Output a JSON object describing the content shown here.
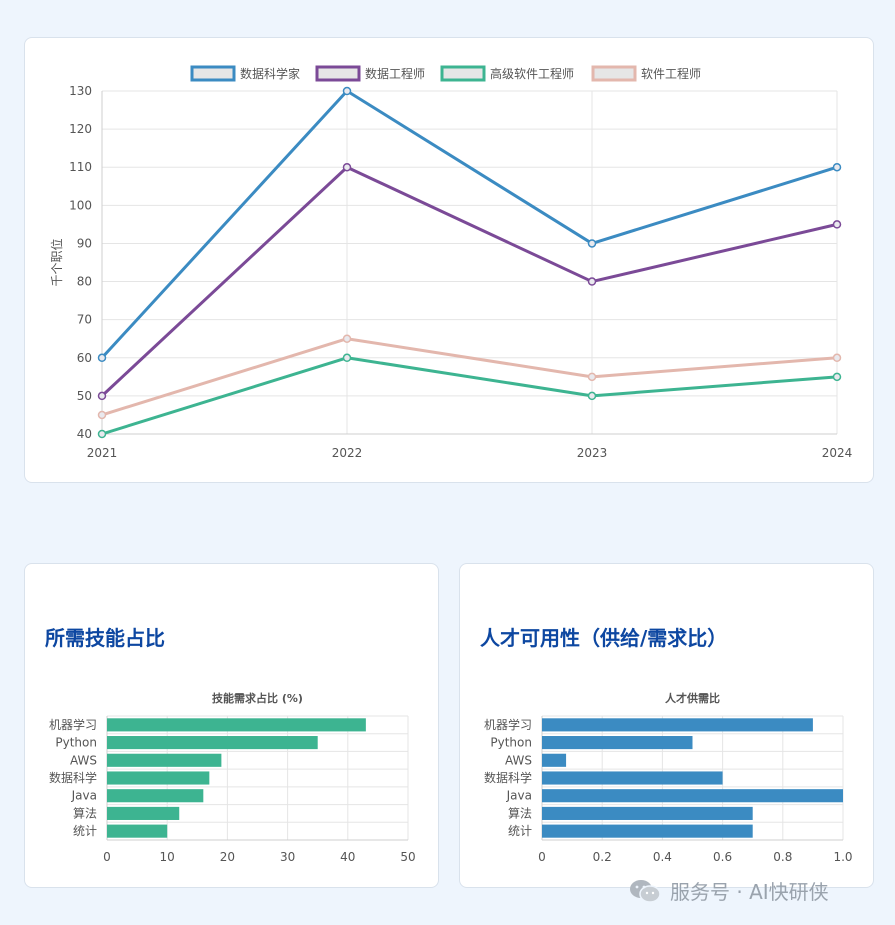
{
  "chart_data": [
    {
      "type": "line",
      "title": "",
      "xlabel": "",
      "ylabel": "千个职位",
      "x": [
        "2021",
        "2022",
        "2023",
        "2024"
      ],
      "ylim": [
        40,
        130
      ],
      "yticks": [
        40,
        50,
        60,
        70,
        80,
        90,
        100,
        110,
        120,
        130
      ],
      "legend_position": "top",
      "grid": true,
      "series": [
        {
          "name": "数据科学家",
          "color": "#3b8bc2",
          "values": [
            60,
            130,
            90,
            110
          ]
        },
        {
          "name": "数据工程师",
          "color": "#7b4a97",
          "values": [
            50,
            110,
            80,
            95
          ]
        },
        {
          "name": "高级软件工程师",
          "color": "#3db491",
          "values": [
            40,
            60,
            50,
            55
          ]
        },
        {
          "name": "软件工程师",
          "color": "#e3b7ad",
          "values": [
            45,
            65,
            55,
            60
          ]
        }
      ]
    },
    {
      "type": "bar",
      "orientation": "horizontal",
      "heading": "所需技能占比",
      "title": "技能需求占比 (%)",
      "categories": [
        "机器学习",
        "Python",
        "AWS",
        "数据科学",
        "Java",
        "算法",
        "统计"
      ],
      "values": [
        43,
        35,
        19,
        17,
        16,
        12,
        10
      ],
      "xlim": [
        0,
        50
      ],
      "xticks": [
        "0",
        "10",
        "20",
        "30",
        "40",
        "50"
      ],
      "color": "#3db491",
      "grid": true
    },
    {
      "type": "bar",
      "orientation": "horizontal",
      "heading": "人才可用性（供给/需求比）",
      "title": "人才供需比",
      "categories": [
        "机器学习",
        "Python",
        "AWS",
        "数据科学",
        "Java",
        "算法",
        "统计"
      ],
      "values": [
        0.9,
        0.5,
        0.08,
        0.6,
        1.0,
        0.7,
        0.7
      ],
      "xlim": [
        0,
        1
      ],
      "xticks": [
        "0",
        "0.2",
        "0.4",
        "0.6",
        "0.8",
        "1.0"
      ],
      "color": "#3b8bc2",
      "grid": true
    }
  ],
  "watermark": {
    "text": "服务号 · AI快研侠",
    "icon": "wechat-icon"
  }
}
